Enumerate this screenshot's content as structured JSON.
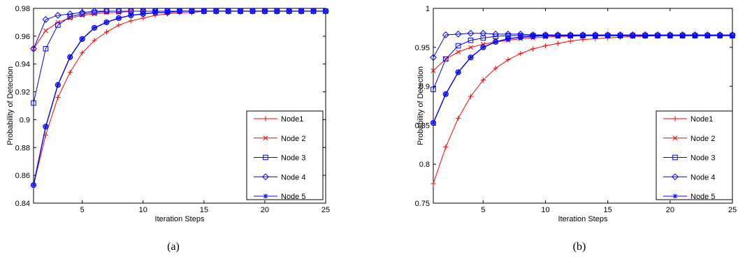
{
  "chart_data": [
    {
      "type": "line",
      "caption": "(a)",
      "xlabel": "Iteration Steps",
      "ylabel": "Probability of Detection",
      "xlim": [
        1,
        25
      ],
      "ylim": [
        0.84,
        0.98
      ],
      "xticks": [
        5,
        10,
        15,
        20,
        25
      ],
      "yticks": [
        0.84,
        0.86,
        0.88,
        0.9,
        0.92,
        0.94,
        0.96,
        0.98
      ],
      "ytick_labels": [
        "0.84",
        "0.86",
        "0.88",
        "0.9",
        "0.92",
        "0.94",
        "0.96",
        "0.98"
      ],
      "legend_position": "bottom-right",
      "x": [
        1,
        2,
        3,
        4,
        5,
        6,
        7,
        8,
        9,
        10,
        11,
        12,
        13,
        14,
        15,
        16,
        17,
        18,
        19,
        20,
        21,
        22,
        23,
        24,
        25
      ],
      "series": [
        {
          "name": "Node1",
          "color": "#ff0000",
          "marker": "plus",
          "values": [
            0.853,
            0.889,
            0.916,
            0.934,
            0.948,
            0.957,
            0.963,
            0.968,
            0.971,
            0.973,
            0.975,
            0.976,
            0.977,
            0.977,
            0.978,
            0.978,
            0.978,
            0.978,
            0.978,
            0.978,
            0.978,
            0.978,
            0.978,
            0.978,
            0.978
          ]
        },
        {
          "name": "Node 2",
          "color": "#ff0000",
          "marker": "x",
          "values": [
            0.951,
            0.964,
            0.97,
            0.973,
            0.975,
            0.976,
            0.977,
            0.977,
            0.978,
            0.978,
            0.978,
            0.978,
            0.978,
            0.978,
            0.978,
            0.978,
            0.978,
            0.978,
            0.978,
            0.978,
            0.978,
            0.978,
            0.978,
            0.978,
            0.978
          ]
        },
        {
          "name": "Node 3",
          "color": "#0000ff",
          "marker": "square",
          "values": [
            0.912,
            0.951,
            0.968,
            0.974,
            0.976,
            0.977,
            0.978,
            0.978,
            0.978,
            0.978,
            0.978,
            0.978,
            0.978,
            0.978,
            0.978,
            0.978,
            0.978,
            0.978,
            0.978,
            0.978,
            0.978,
            0.978,
            0.978,
            0.978,
            0.978
          ]
        },
        {
          "name": "Node 4",
          "color": "#0000ff",
          "marker": "diamond",
          "values": [
            0.951,
            0.972,
            0.975,
            0.976,
            0.977,
            0.978,
            0.978,
            0.978,
            0.978,
            0.978,
            0.978,
            0.978,
            0.978,
            0.978,
            0.978,
            0.978,
            0.978,
            0.978,
            0.978,
            0.978,
            0.978,
            0.978,
            0.978,
            0.978,
            0.978
          ]
        },
        {
          "name": "Node 5",
          "color": "#0000ff",
          "marker": "star",
          "values": [
            0.853,
            0.895,
            0.925,
            0.945,
            0.958,
            0.966,
            0.97,
            0.973,
            0.975,
            0.976,
            0.977,
            0.977,
            0.978,
            0.978,
            0.978,
            0.978,
            0.978,
            0.978,
            0.978,
            0.978,
            0.978,
            0.978,
            0.978,
            0.978,
            0.978
          ]
        },
        {
          "name": "",
          "color": "#0000ff",
          "marker": "circle",
          "values": [
            0.853,
            0.895,
            0.925,
            0.945,
            0.958,
            0.966,
            0.97,
            0.973,
            0.975,
            0.976,
            0.977,
            0.977,
            0.978,
            0.978,
            0.978,
            0.978,
            0.978,
            0.978,
            0.978,
            0.978,
            0.978,
            0.978,
            0.978,
            0.978,
            0.978
          ]
        }
      ]
    },
    {
      "type": "line",
      "caption": "(b)",
      "xlabel": "Iteration Steps",
      "ylabel": "Probability of Detection",
      "xlim": [
        1,
        25
      ],
      "ylim": [
        0.75,
        1.0
      ],
      "xticks": [
        5,
        10,
        15,
        20,
        25
      ],
      "yticks": [
        0.75,
        0.8,
        0.85,
        0.9,
        0.95,
        1.0
      ],
      "ytick_labels": [
        "0.75",
        "0.8",
        "0.85",
        "0.9",
        "0.95",
        "1"
      ],
      "legend_position": "bottom-right",
      "x": [
        1,
        2,
        3,
        4,
        5,
        6,
        7,
        8,
        9,
        10,
        11,
        12,
        13,
        14,
        15,
        16,
        17,
        18,
        19,
        20,
        21,
        22,
        23,
        24,
        25
      ],
      "series": [
        {
          "name": "Node1",
          "color": "#ff0000",
          "marker": "plus",
          "values": [
            0.775,
            0.822,
            0.859,
            0.887,
            0.908,
            0.923,
            0.934,
            0.942,
            0.948,
            0.952,
            0.955,
            0.958,
            0.96,
            0.961,
            0.962,
            0.963,
            0.964,
            0.964,
            0.965,
            0.965,
            0.965,
            0.965,
            0.965,
            0.965,
            0.965
          ]
        },
        {
          "name": "Node 2",
          "color": "#ff0000",
          "marker": "x",
          "values": [
            0.92,
            0.935,
            0.944,
            0.95,
            0.954,
            0.957,
            0.959,
            0.961,
            0.962,
            0.963,
            0.964,
            0.964,
            0.965,
            0.965,
            0.965,
            0.965,
            0.965,
            0.965,
            0.965,
            0.965,
            0.965,
            0.965,
            0.965,
            0.965,
            0.965
          ]
        },
        {
          "name": "Node 3",
          "color": "#0000ff",
          "marker": "square",
          "values": [
            0.896,
            0.935,
            0.952,
            0.959,
            0.962,
            0.964,
            0.965,
            0.965,
            0.965,
            0.965,
            0.965,
            0.965,
            0.965,
            0.965,
            0.965,
            0.965,
            0.965,
            0.965,
            0.965,
            0.965,
            0.965,
            0.965,
            0.965,
            0.965,
            0.965
          ]
        },
        {
          "name": "Node 4",
          "color": "#0000ff",
          "marker": "diamond",
          "values": [
            0.937,
            0.966,
            0.967,
            0.968,
            0.968,
            0.967,
            0.967,
            0.967,
            0.966,
            0.966,
            0.966,
            0.966,
            0.966,
            0.966,
            0.966,
            0.966,
            0.966,
            0.966,
            0.966,
            0.966,
            0.966,
            0.966,
            0.966,
            0.966,
            0.966
          ]
        },
        {
          "name": "Node 5",
          "color": "#0000ff",
          "marker": "star",
          "values": [
            0.853,
            0.89,
            0.918,
            0.937,
            0.95,
            0.957,
            0.961,
            0.963,
            0.964,
            0.965,
            0.965,
            0.965,
            0.965,
            0.965,
            0.965,
            0.965,
            0.965,
            0.965,
            0.965,
            0.965,
            0.965,
            0.965,
            0.965,
            0.965,
            0.965
          ]
        },
        {
          "name": "",
          "color": "#0000ff",
          "marker": "circle",
          "values": [
            0.853,
            0.89,
            0.918,
            0.937,
            0.95,
            0.957,
            0.961,
            0.963,
            0.964,
            0.965,
            0.965,
            0.965,
            0.965,
            0.965,
            0.965,
            0.965,
            0.965,
            0.965,
            0.965,
            0.965,
            0.965,
            0.965,
            0.965,
            0.965,
            0.965
          ]
        }
      ]
    }
  ]
}
